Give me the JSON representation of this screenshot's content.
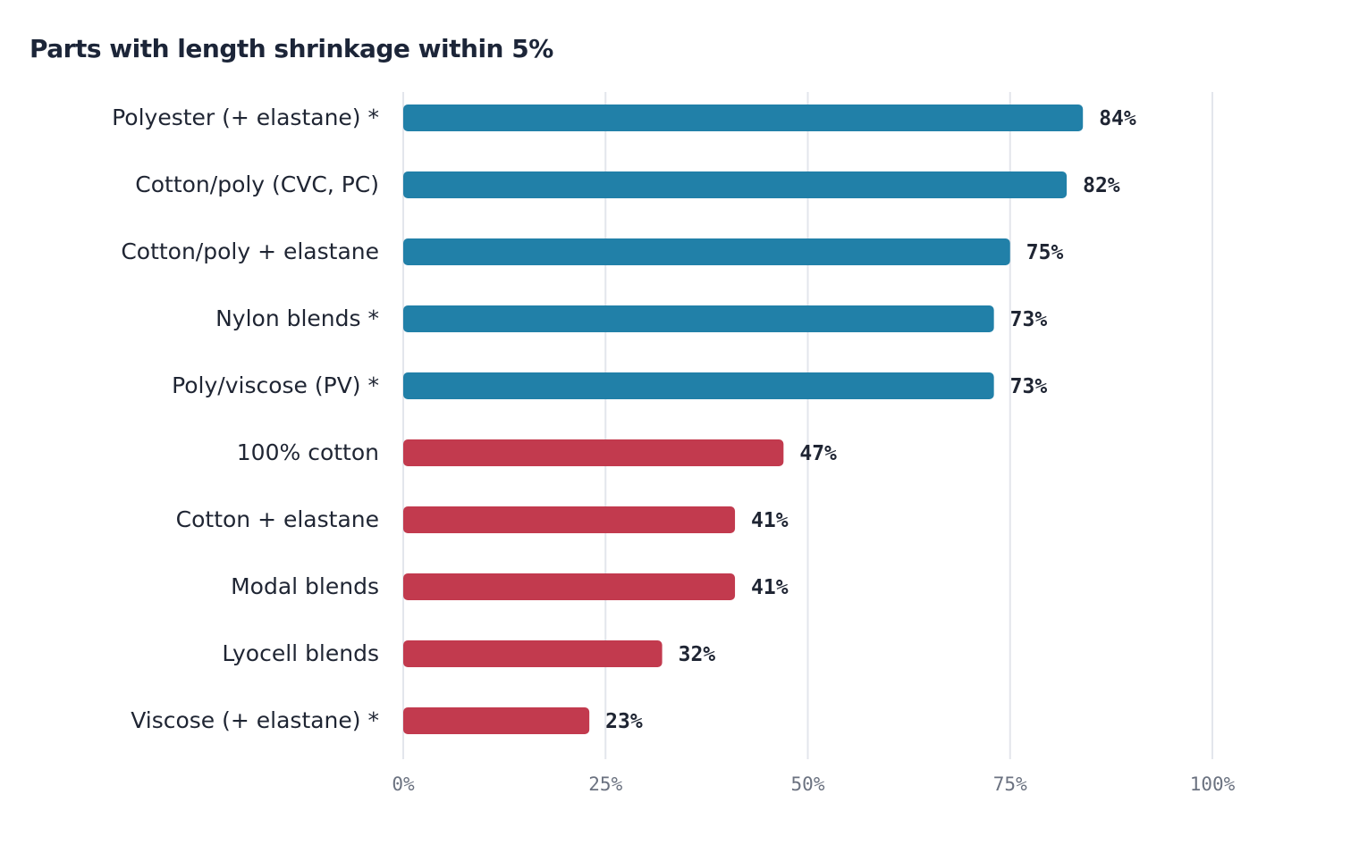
{
  "chart_data": {
    "type": "bar",
    "orientation": "horizontal",
    "title": "Parts with length shrinkage within 5%",
    "xlabel": "",
    "ylabel": "",
    "xlim": [
      0,
      100
    ],
    "grid": true,
    "ticks": [
      {
        "value": 0,
        "label": "0%"
      },
      {
        "value": 25,
        "label": "25%"
      },
      {
        "value": 50,
        "label": "50%"
      },
      {
        "value": 75,
        "label": "75%"
      },
      {
        "value": 100,
        "label": "100%"
      }
    ],
    "colors": {
      "high": "#2180a8",
      "low": "#c23a4e"
    },
    "bars": [
      {
        "category": "Polyester (+ elastane) *",
        "value": 84,
        "label": "84%",
        "group": "high"
      },
      {
        "category": "Cotton/poly (CVC, PC)",
        "value": 82,
        "label": "82%",
        "group": "high"
      },
      {
        "category": "Cotton/poly + elastane",
        "value": 75,
        "label": "75%",
        "group": "high"
      },
      {
        "category": "Nylon blends *",
        "value": 73,
        "label": "73%",
        "group": "high"
      },
      {
        "category": "Poly/viscose (PV) *",
        "value": 73,
        "label": "73%",
        "group": "high"
      },
      {
        "category": "100% cotton",
        "value": 47,
        "label": "47%",
        "group": "low"
      },
      {
        "category": "Cotton + elastane",
        "value": 41,
        "label": "41%",
        "group": "low"
      },
      {
        "category": "Modal blends",
        "value": 41,
        "label": "41%",
        "group": "low"
      },
      {
        "category": "Lyocell blends",
        "value": 32,
        "label": "32%",
        "group": "low"
      },
      {
        "category": "Viscose (+ elastane) *",
        "value": 23,
        "label": "23%",
        "group": "low"
      }
    ]
  }
}
